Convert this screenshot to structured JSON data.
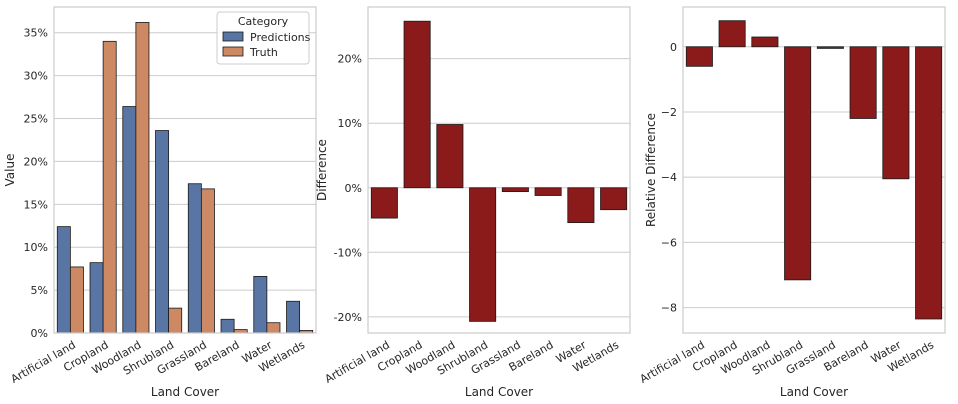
{
  "chart_data": [
    {
      "type": "bar",
      "categories": [
        "Artificial land",
        "Cropland",
        "Woodland",
        "Shrubland",
        "Grassland",
        "Bareland",
        "Water",
        "Wetlands"
      ],
      "series": [
        {
          "name": "Predictions",
          "values": [
            12.4,
            8.2,
            26.4,
            23.6,
            17.4,
            1.6,
            6.6,
            3.7
          ],
          "color": "#5875a4"
        },
        {
          "name": "Truth",
          "values": [
            7.7,
            34.0,
            36.2,
            2.9,
            16.8,
            0.4,
            1.2,
            0.3
          ],
          "color": "#cc8963"
        }
      ],
      "xlabel": "Land Cover",
      "ylabel": "Value",
      "ylim": [
        0,
        38
      ],
      "yticks": [
        0,
        5,
        10,
        15,
        20,
        25,
        30,
        35
      ],
      "ytick_labels": [
        "0%",
        "5%",
        "10%",
        "15%",
        "20%",
        "25%",
        "30%",
        "35%"
      ],
      "legend_title": "Category",
      "legend_position": "top-right",
      "grid": "horizontal"
    },
    {
      "type": "bar",
      "categories": [
        "Artificial land",
        "Cropland",
        "Woodland",
        "Shrubland",
        "Grassland",
        "Bareland",
        "Water",
        "Wetlands"
      ],
      "values": [
        -4.7,
        25.8,
        9.8,
        -20.7,
        -0.6,
        -1.2,
        -5.4,
        -3.4
      ],
      "color": "#8b1a1a",
      "xlabel": "Land Cover",
      "ylabel": "Difference",
      "ylim": [
        -22.5,
        28
      ],
      "yticks": [
        -20,
        -10,
        0,
        10,
        20
      ],
      "ytick_labels": [
        "-20%",
        "-10%",
        "0%",
        "10%",
        "20%"
      ],
      "grid": "horizontal"
    },
    {
      "type": "bar",
      "categories": [
        "Artificial land",
        "Cropland",
        "Woodland",
        "Shrubland",
        "Grassland",
        "Bareland",
        "Water",
        "Wetlands"
      ],
      "values": [
        -0.6,
        0.8,
        0.3,
        -7.15,
        -0.05,
        -2.2,
        -4.05,
        -8.35
      ],
      "color": "#8b1a1a",
      "xlabel": "Land Cover",
      "ylabel": "Relative Difference",
      "ylim": [
        -8.78,
        1.22
      ],
      "yticks": [
        -8,
        -6,
        -4,
        -2,
        0
      ],
      "ytick_labels": [
        "−8",
        "−6",
        "−4",
        "−2",
        "0"
      ],
      "grid": "horizontal"
    }
  ]
}
